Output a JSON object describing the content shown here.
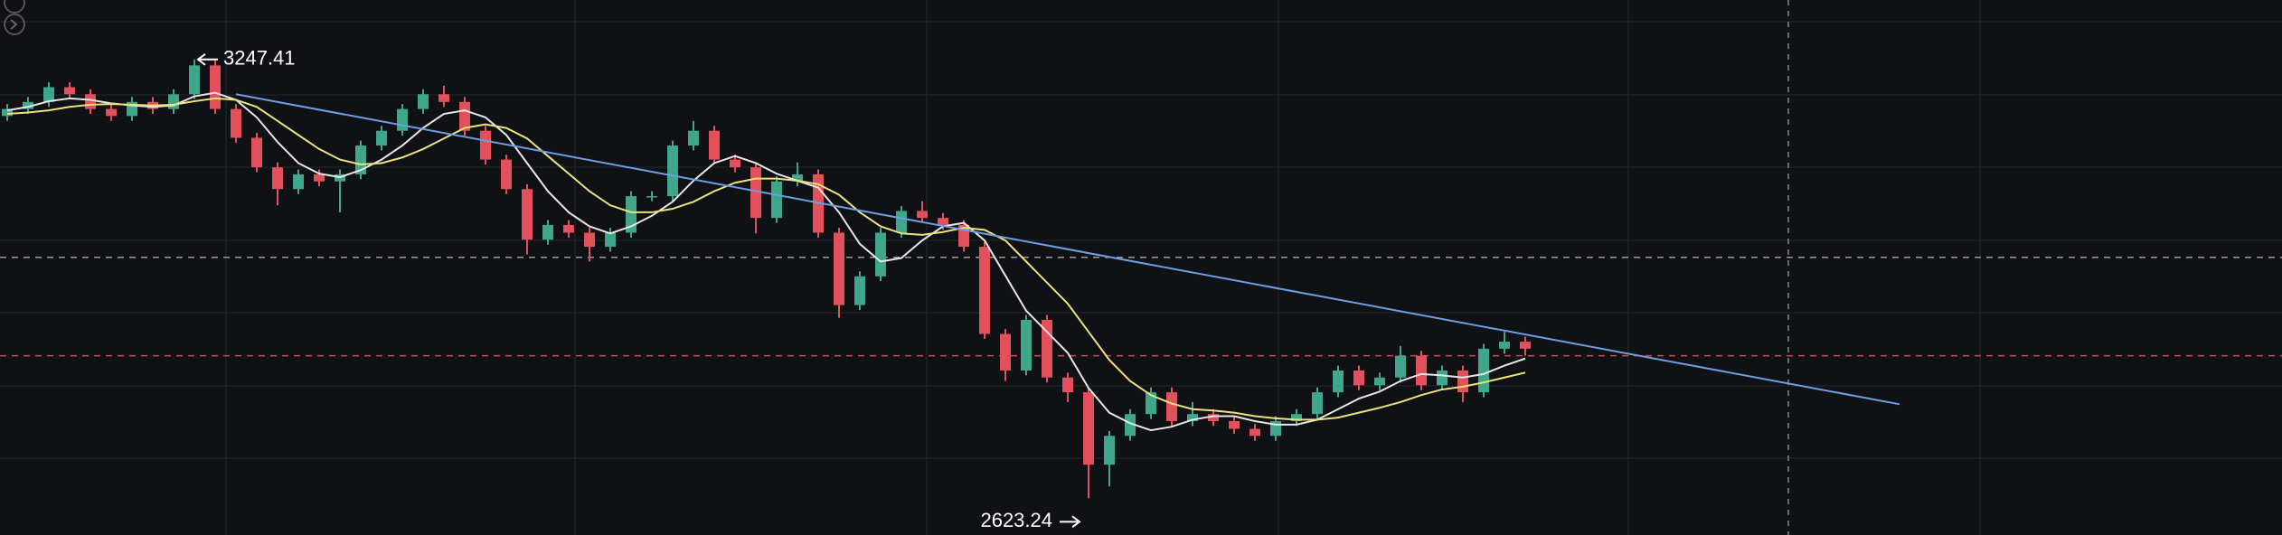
{
  "chart_data": {
    "type": "candlestick",
    "up_color": "#3fa58b",
    "down_color": "#e2505c",
    "ylim": [
      2571,
      3332
    ],
    "open": [
      3167,
      3177,
      3187,
      3208,
      3198,
      3177,
      3167,
      3187,
      3177,
      3198,
      3239,
      3177,
      3136,
      3094,
      3063,
      3084,
      3074,
      3084,
      3125,
      3146,
      3177,
      3198,
      3187,
      3146,
      3105,
      3063,
      2991,
      3012,
      3001,
      2981,
      3001,
      3053,
      3053,
      3125,
      3146,
      3105,
      3094,
      3022,
      3074,
      3084,
      3001,
      2898,
      2939,
      3001,
      3032,
      3022,
      3012,
      2981,
      2857,
      2805,
      2877,
      2795,
      2774,
      2671,
      2712,
      2743,
      2774,
      2733,
      2743,
      2733,
      2722,
      2712,
      2733,
      2743,
      2774,
      2805,
      2784,
      2795,
      2826,
      2784,
      2805,
      2774,
      2836,
      2846
    ],
    "high": [
      3184,
      3194,
      3215,
      3215,
      3205,
      3184,
      3194,
      3194,
      3205,
      3247.41,
      3246,
      3184,
      3143,
      3101,
      3091,
      3091,
      3091,
      3132,
      3153,
      3184,
      3205,
      3210,
      3194,
      3153,
      3112,
      3070,
      3019,
      3019,
      3008,
      3008,
      3060,
      3060,
      3132,
      3160,
      3153,
      3112,
      3101,
      3081,
      3101,
      3091,
      3008,
      2946,
      3008,
      3039,
      3046,
      3029,
      3019,
      2988,
      2864,
      2884,
      2884,
      2802,
      2781,
      2719,
      2750,
      2781,
      2781,
      2760,
      2750,
      2740,
      2729,
      2740,
      2750,
      2781,
      2812,
      2812,
      2802,
      2840,
      2833,
      2812,
      2812,
      2843,
      2860,
      2853
    ],
    "low": [
      3160,
      3170,
      3180,
      3191,
      3170,
      3160,
      3160,
      3170,
      3170,
      3191,
      3170,
      3129,
      3087,
      3040,
      3056,
      3067,
      3030,
      3077,
      3118,
      3139,
      3170,
      3180,
      3139,
      3098,
      3056,
      2970,
      2984,
      2994,
      2960,
      2974,
      2994,
      3046,
      3046,
      3118,
      3098,
      3087,
      3000,
      3015,
      3067,
      2994,
      2880,
      2891,
      2932,
      2994,
      3015,
      3005,
      2974,
      2850,
      2790,
      2798,
      2788,
      2760,
      2623.24,
      2640,
      2705,
      2736,
      2726,
      2726,
      2726,
      2715,
      2705,
      2705,
      2726,
      2736,
      2767,
      2777,
      2777,
      2788,
      2777,
      2777,
      2760,
      2767,
      2829,
      2826
    ],
    "close": [
      3177,
      3187,
      3208,
      3198,
      3177,
      3167,
      3187,
      3177,
      3198,
      3239,
      3177,
      3136,
      3094,
      3063,
      3084,
      3074,
      3084,
      3125,
      3146,
      3177,
      3198,
      3187,
      3146,
      3105,
      3063,
      2991,
      3012,
      3001,
      2981,
      3001,
      3053,
      3053,
      3125,
      3146,
      3105,
      3094,
      3022,
      3074,
      3084,
      3001,
      2898,
      2939,
      3001,
      3032,
      3022,
      3012,
      2981,
      2857,
      2805,
      2877,
      2795,
      2774,
      2671,
      2712,
      2743,
      2774,
      2733,
      2743,
      2733,
      2722,
      2712,
      2733,
      2743,
      2774,
      2805,
      2784,
      2795,
      2826,
      2784,
      2805,
      2774,
      2836,
      2846,
      2836
    ],
    "lines": [
      {
        "color": "#e6e6e6",
        "values": [
          3175,
          3180,
          3188,
          3192,
          3190,
          3185,
          3182,
          3180,
          3182,
          3195,
          3200,
          3190,
          3165,
          3130,
          3100,
          3085,
          3080,
          3090,
          3105,
          3125,
          3150,
          3170,
          3175,
          3165,
          3140,
          3100,
          3060,
          3030,
          3010,
          3000,
          3010,
          3025,
          3045,
          3075,
          3100,
          3110,
          3100,
          3085,
          3075,
          3065,
          3030,
          2985,
          2960,
          2965,
          2990,
          3010,
          3015,
          2990,
          2940,
          2890,
          2860,
          2830,
          2780,
          2745,
          2730,
          2720,
          2725,
          2735,
          2740,
          2740,
          2733,
          2728,
          2728,
          2735,
          2750,
          2765,
          2775,
          2790,
          2800,
          2798,
          2795,
          2800,
          2812,
          2822
        ]
      },
      {
        "color": "#ece27c",
        "values": [
          3170,
          3172,
          3175,
          3180,
          3183,
          3184,
          3183,
          3182,
          3183,
          3188,
          3192,
          3190,
          3180,
          3160,
          3140,
          3120,
          3105,
          3098,
          3100,
          3108,
          3120,
          3135,
          3150,
          3155,
          3150,
          3135,
          3110,
          3085,
          3060,
          3040,
          3030,
          3030,
          3035,
          3045,
          3060,
          3072,
          3078,
          3078,
          3075,
          3070,
          3055,
          3030,
          3010,
          3000,
          2998,
          3002,
          3008,
          3005,
          2990,
          2960,
          2930,
          2900,
          2860,
          2820,
          2790,
          2770,
          2758,
          2750,
          2748,
          2745,
          2740,
          2737,
          2735,
          2735,
          2738,
          2745,
          2752,
          2760,
          2770,
          2778,
          2782,
          2788,
          2795,
          2802
        ]
      }
    ],
    "trend_line": {
      "color": "#6c9fe2",
      "x": [
        11,
        91
      ],
      "values": [
        3198,
        2757
      ]
    },
    "levels": [
      {
        "value": 2966,
        "color": "#9a9a9a"
      },
      {
        "value": 2826,
        "color": "#d9434f"
      }
    ]
  }
}
